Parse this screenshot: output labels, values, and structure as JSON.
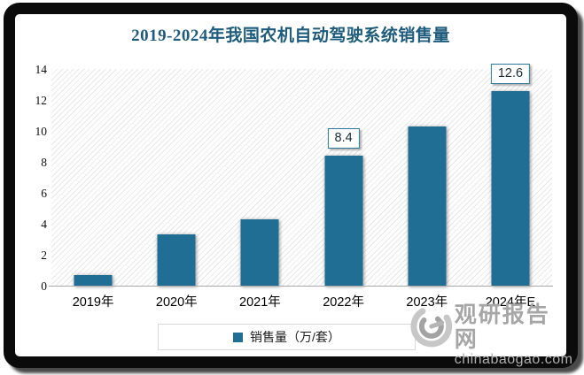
{
  "title": "2019-2024年我国农机自动驾驶系统销售量",
  "chart_data": {
    "type": "bar",
    "title": "2019-2024年我国农机自动驾驶系统销售量",
    "categories": [
      "2019年",
      "2020年",
      "2021年",
      "2022年",
      "2023年",
      "2024年E"
    ],
    "values": [
      0.7,
      3.3,
      4.3,
      8.4,
      10.3,
      12.6
    ],
    "data_labels": {
      "2022年": "8.4",
      "2024年E": "12.6"
    },
    "ylim": [
      0,
      14
    ],
    "yticks": [
      0,
      2,
      4,
      6,
      8,
      10,
      12,
      14
    ],
    "xlabel": "",
    "ylabel": "",
    "grid": false,
    "legend_position": "bottom",
    "legend_entries": [
      "销售量（万/套）"
    ],
    "bar_color": "#206E93"
  },
  "legend": {
    "label": "销售量（万/套）"
  },
  "watermark": {
    "name": "观研报告网",
    "domain": "chinabaogao.com"
  },
  "colors": {
    "bar": "#206E93",
    "title_text": "#1E5C7E",
    "value_label_border": "#2B77A0",
    "axis_line": "#A9A9A9",
    "legend_border": "#D9D9D9",
    "watermark_gray": "#A6A6A6",
    "frame": "#0B0B0B"
  }
}
